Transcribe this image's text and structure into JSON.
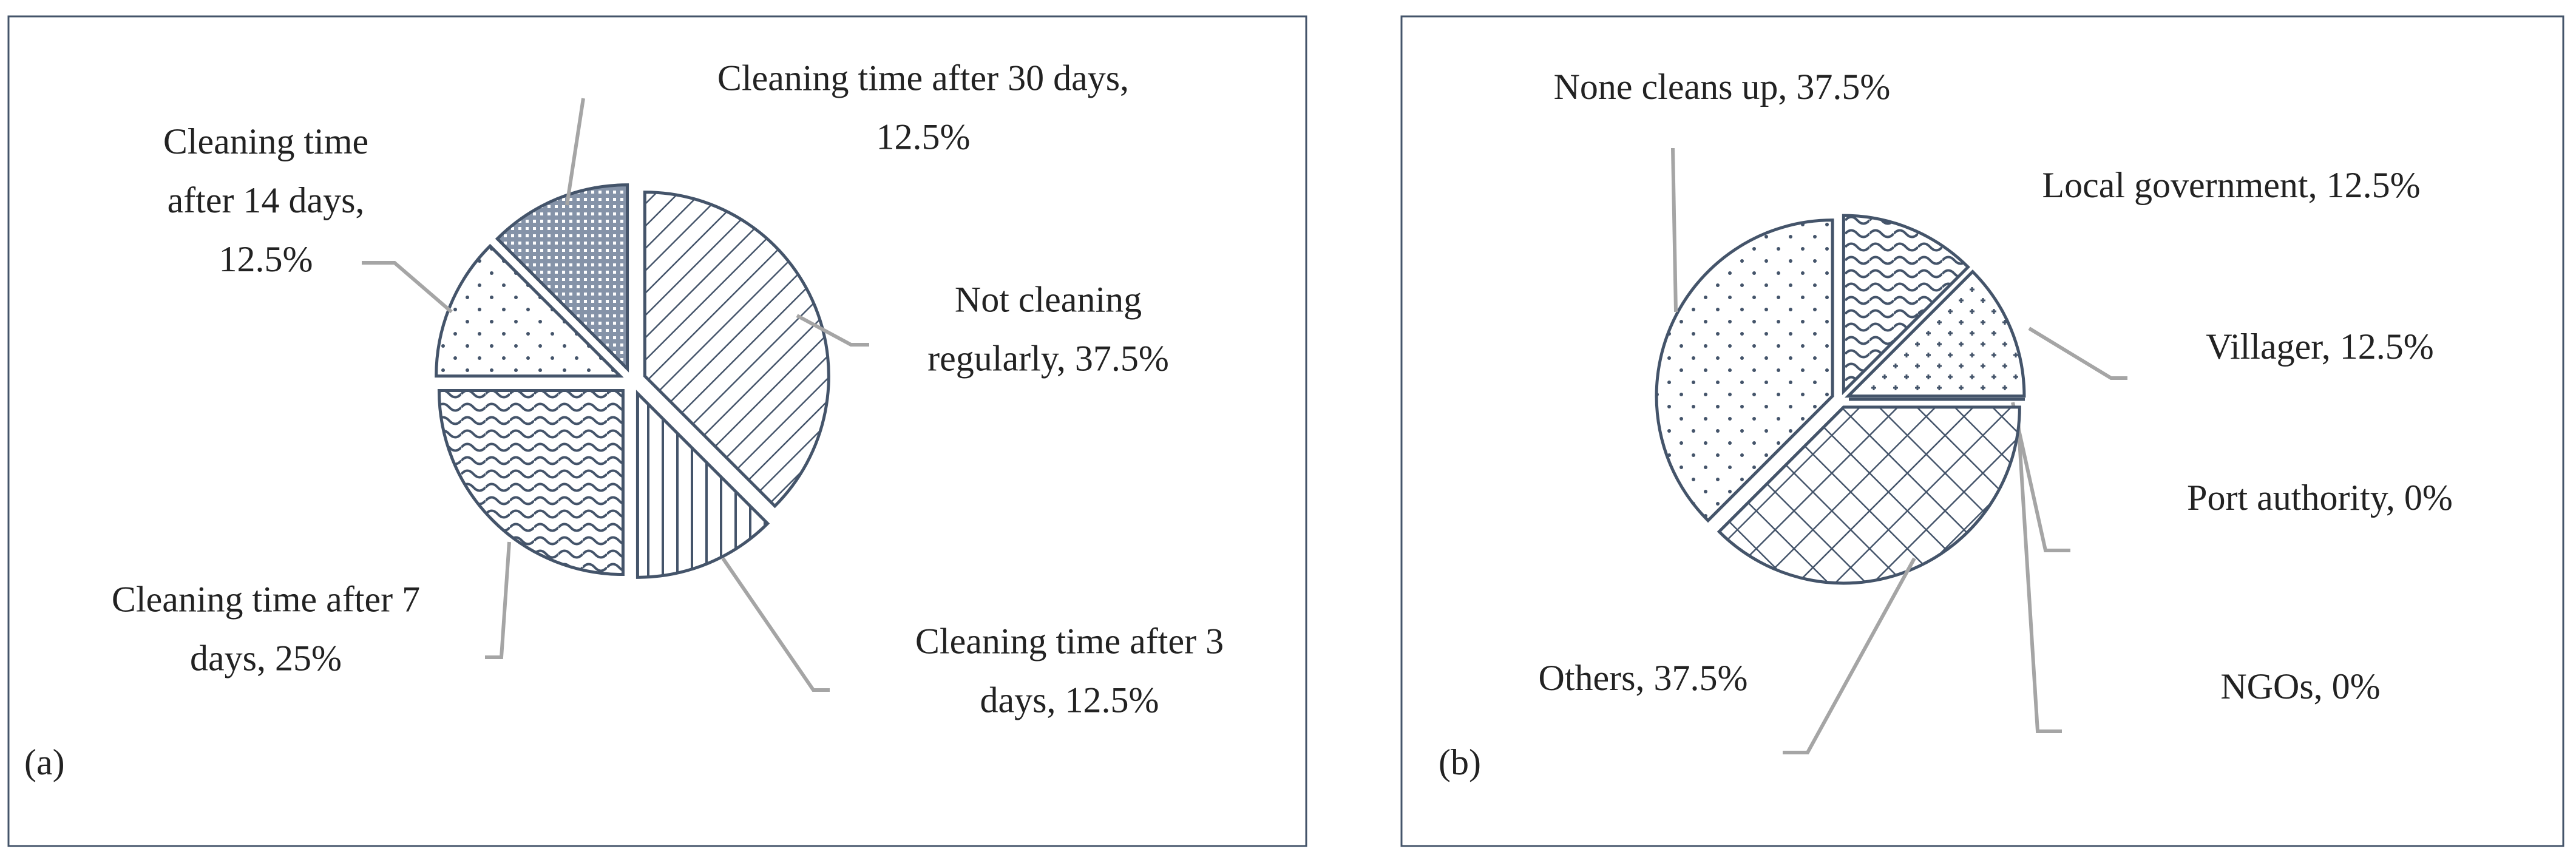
{
  "chart_data": [
    {
      "type": "pie",
      "label": "(a)",
      "value_labels": [
        [
          "Not cleaning",
          "regularly, 37.5%"
        ],
        [
          "Cleaning time after 3",
          "days, 12.5%"
        ],
        [
          "Cleaning time after 7",
          "days, 25%"
        ],
        [
          "Cleaning time",
          "after 14 days,",
          "12.5%"
        ],
        [
          "Cleaning time after 30 days,",
          "12.5%"
        ]
      ],
      "values": [
        37.5,
        12.5,
        25,
        12.5,
        12.5
      ]
    },
    {
      "type": "pie",
      "label": "(b)",
      "value_labels": [
        [
          "Local government, 12.5%"
        ],
        [
          "Villager, 12.5%"
        ],
        [
          "Port authority, 0%"
        ],
        [
          "NGOs, 0%"
        ],
        [
          "Others, 37.5%"
        ],
        [
          "None cleans up, 37.5%"
        ]
      ],
      "values": [
        12.5,
        12.5,
        0,
        0,
        37.5,
        37.5
      ]
    }
  ]
}
